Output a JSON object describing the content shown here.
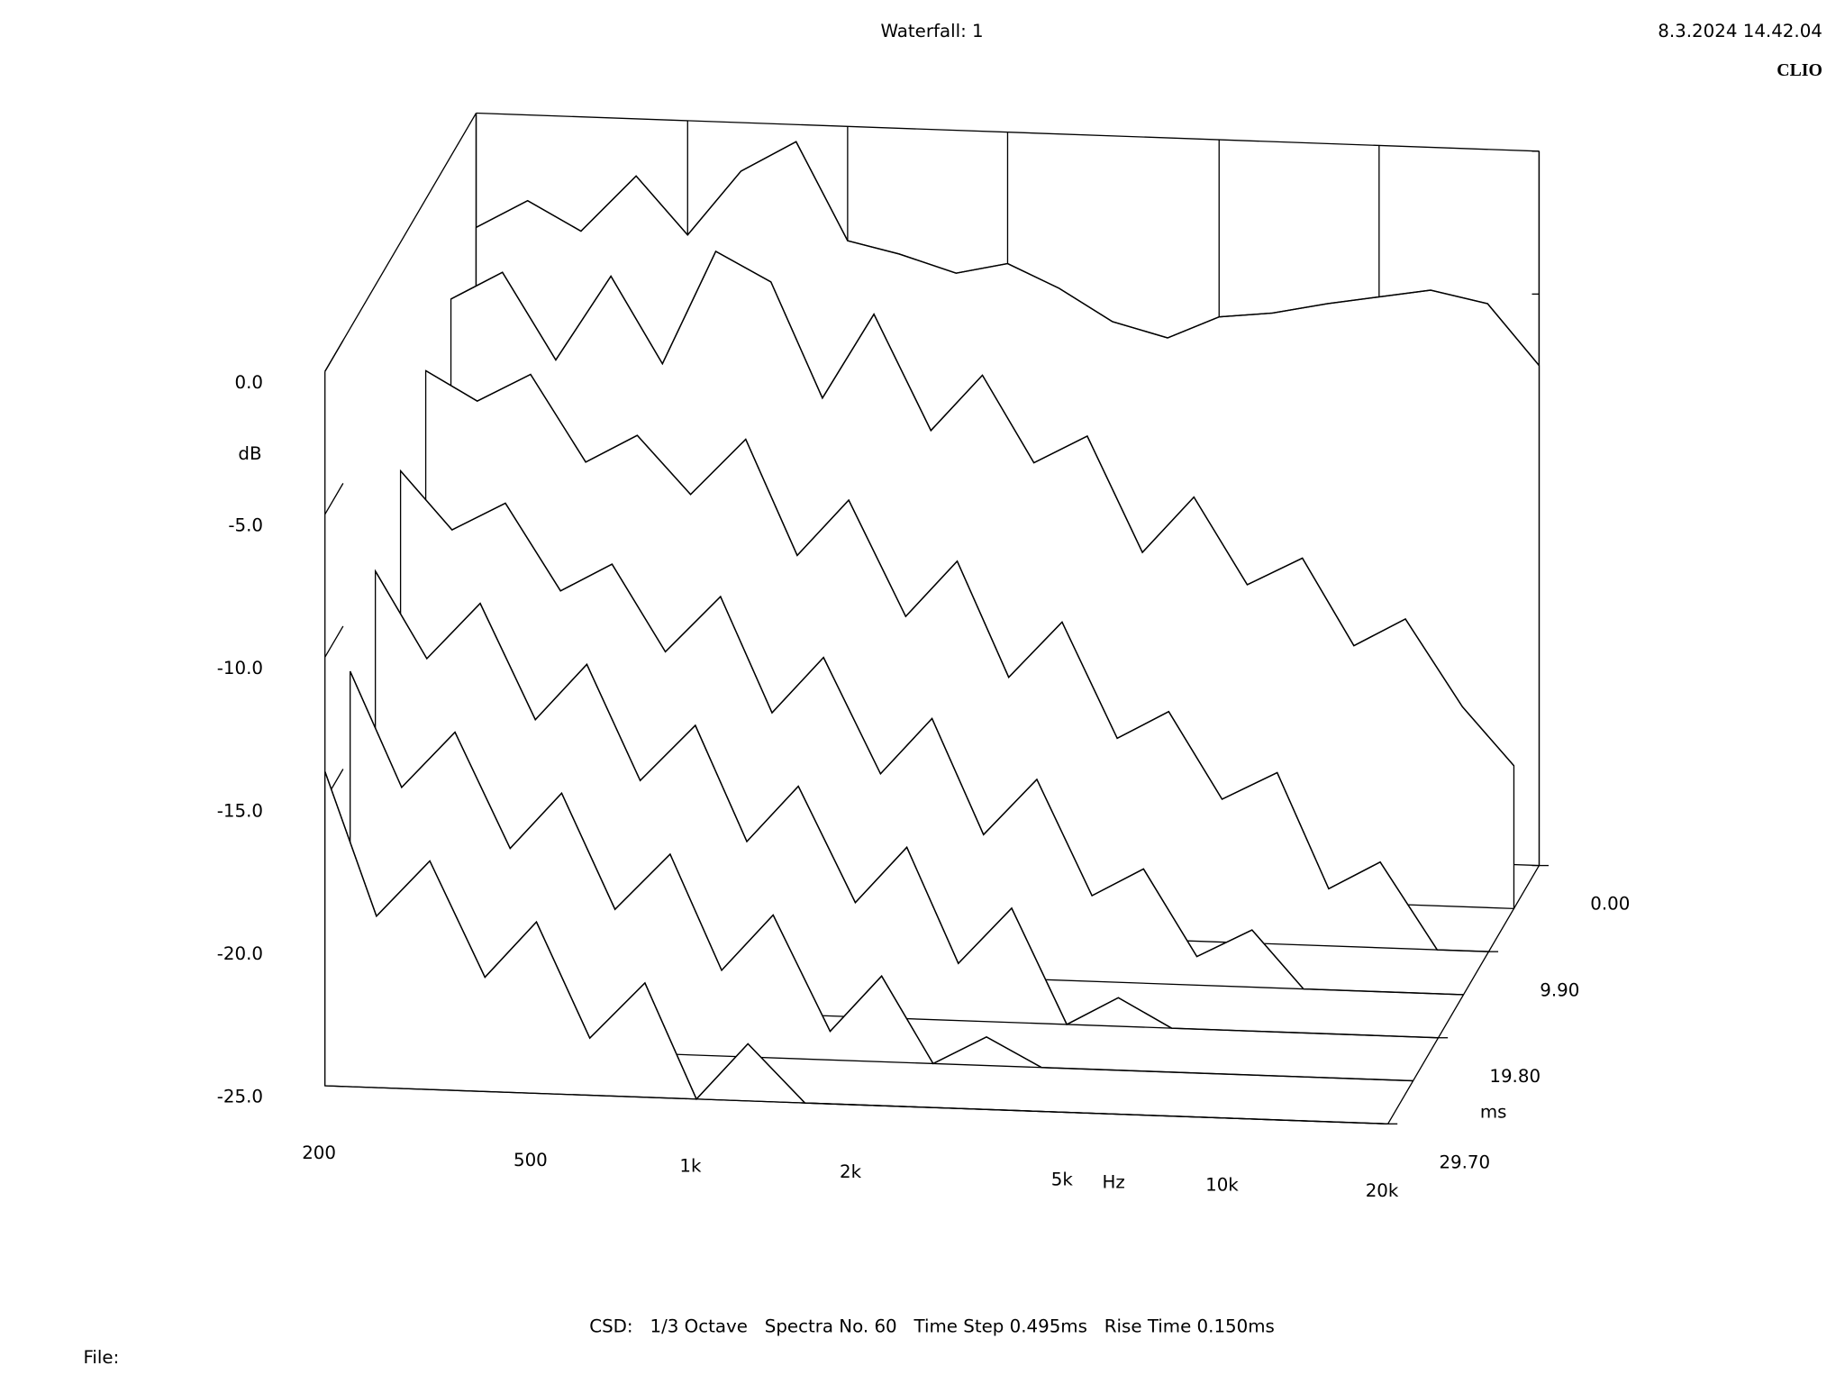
{
  "chart_data": {
    "type": "waterfall",
    "title": "Waterfall: 1",
    "timestamp": "8.3.2024 14.42.04",
    "brand": "CLIO",
    "x_label": "Hz",
    "y_label": "dB",
    "z_label": "ms",
    "footer": "CSD:   1/3 Octave   Spectra No. 60   Time Step 0.495ms   Rise Time 0.150ms",
    "file_label": "File:",
    "log_x": true,
    "color": "#000000",
    "x": [
      200,
      250,
      315,
      400,
      500,
      630,
      800,
      1000,
      1250,
      1600,
      2000,
      2500,
      3150,
      4000,
      5000,
      6300,
      8000,
      10000,
      12500,
      16000,
      20000
    ],
    "xlim": [
      200,
      20000
    ],
    "xticks": [
      200,
      500,
      {
        "value": 1000,
        "label": "1k"
      },
      {
        "value": 2000,
        "label": "2k"
      },
      {
        "value": 5000,
        "label": "5k"
      },
      {
        "value": 10000,
        "label": "10k"
      },
      {
        "value": 20000,
        "label": "20k"
      }
    ],
    "ylim": [
      -25,
      0
    ],
    "yticks": [
      {
        "value": 0,
        "label": "0.0"
      },
      {
        "value": -5,
        "label": "-5.0"
      },
      {
        "value": -10,
        "label": "-10.0"
      },
      {
        "value": -15,
        "label": "-15.0"
      },
      {
        "value": -20,
        "label": "-20.0"
      },
      {
        "value": -25,
        "label": "-25.0"
      }
    ],
    "zlim": [
      0,
      29.7
    ],
    "zticks": [
      {
        "value": 0,
        "label": "0.00"
      },
      {
        "value": 9.9,
        "label": "9.90"
      },
      {
        "value": 19.8,
        "label": "19.80"
      },
      {
        "value": 29.7,
        "label": "29.70"
      }
    ],
    "series": [
      {
        "z": 0,
        "values": [
          -4,
          -3,
          -4,
          -2,
          -4,
          -1.7,
          -0.6,
          -4,
          -4.4,
          -5,
          -4.6,
          -5.4,
          -6.5,
          -7,
          -6.2,
          -6,
          -5.6,
          -5.3,
          -5,
          -5.4,
          -7.5
        ]
      },
      {
        "z": 4.95,
        "values": [
          -5,
          -4,
          -7,
          -4,
          -7,
          -3,
          -4,
          -8,
          -5,
          -9,
          -7,
          -10,
          -9,
          -13,
          -11,
          -14,
          -13,
          -16,
          -15,
          -18,
          -20
        ]
      },
      {
        "z": 9.9,
        "values": [
          -6,
          -7,
          -6,
          -9,
          -8,
          -10,
          -8,
          -12,
          -10,
          -14,
          -12,
          -16,
          -14,
          -18,
          -17,
          -20,
          -19,
          -23,
          -22,
          -25,
          -25
        ]
      },
      {
        "z": 14.85,
        "values": [
          -8,
          -10,
          -9,
          -12,
          -11,
          -14,
          -12,
          -16,
          -14,
          -18,
          -16,
          -20,
          -18,
          -22,
          -21,
          -24,
          -23,
          -25,
          -25,
          -25,
          -25
        ]
      },
      {
        "z": 19.8,
        "values": [
          -10,
          -13,
          -11,
          -15,
          -13,
          -17,
          -15,
          -19,
          -17,
          -21,
          -19,
          -23,
          -21,
          -25,
          -24,
          -25,
          -25,
          -25,
          -25,
          -25,
          -25
        ]
      },
      {
        "z": 24.75,
        "values": [
          -12,
          -16,
          -14,
          -18,
          -16,
          -20,
          -18,
          -22,
          -20,
          -24,
          -22,
          -25,
          -24,
          -25,
          -25,
          -25,
          -25,
          -25,
          -25,
          -25,
          -25
        ]
      },
      {
        "z": 29.7,
        "values": [
          -14,
          -19,
          -17,
          -21,
          -19,
          -23,
          -21,
          -25,
          -23,
          -25,
          -25,
          -25,
          -25,
          -25,
          -25,
          -25,
          -25,
          -25,
          -25,
          -25,
          -25
        ]
      }
    ]
  }
}
